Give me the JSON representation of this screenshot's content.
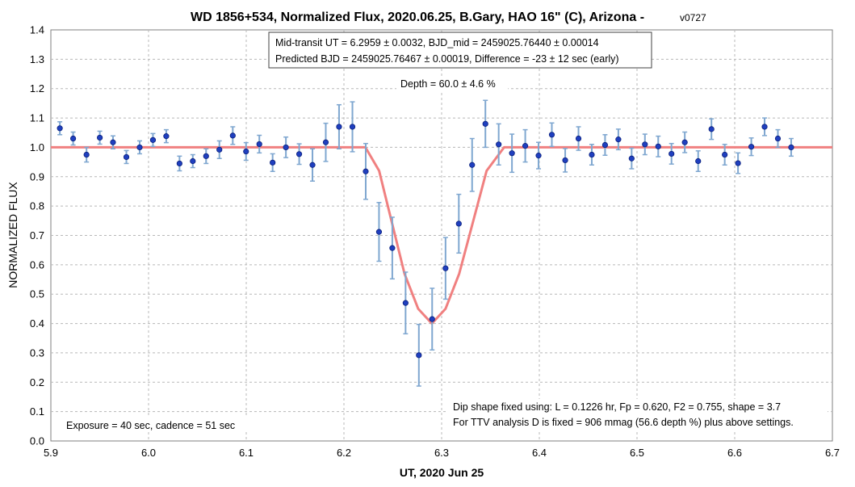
{
  "chart_data": {
    "type": "scatter",
    "title": "WD 1856+534, Normalized Flux, 2020.06.25, B.Gary, HAO 16\" (C), Arizona -",
    "title_version": "v0727",
    "xlabel": "UT, 2020 Jun 25",
    "ylabel": "NORMALIZED FLUX",
    "xlim": [
      5.9,
      6.7
    ],
    "ylim": [
      0.0,
      1.4
    ],
    "x_ticks": [
      "5.9",
      "6.0",
      "6.1",
      "6.2",
      "6.3",
      "6.4",
      "6.5",
      "6.6",
      "6.7"
    ],
    "y_ticks": [
      "0.0",
      "0.1",
      "0.2",
      "0.3",
      "0.4",
      "0.5",
      "0.6",
      "0.7",
      "0.8",
      "0.9",
      "1.0",
      "1.1",
      "1.2",
      "1.3",
      "1.4"
    ],
    "grid": true,
    "series": [
      {
        "type": "scatter-errorbar",
        "color": "#1f3fbf",
        "error_color": "#7fa7d0",
        "points": [
          {
            "x": 5.9092,
            "y": 1.065,
            "err": 0.022
          },
          {
            "x": 5.9228,
            "y": 1.03,
            "err": 0.022
          },
          {
            "x": 5.9365,
            "y": 0.975,
            "err": 0.025
          },
          {
            "x": 5.9501,
            "y": 1.033,
            "err": 0.022
          },
          {
            "x": 5.9636,
            "y": 1.017,
            "err": 0.022
          },
          {
            "x": 5.9773,
            "y": 0.967,
            "err": 0.022
          },
          {
            "x": 5.9909,
            "y": 1.0,
            "err": 0.022
          },
          {
            "x": 6.0045,
            "y": 1.025,
            "err": 0.022
          },
          {
            "x": 6.0181,
            "y": 1.038,
            "err": 0.022
          },
          {
            "x": 6.0317,
            "y": 0.945,
            "err": 0.025
          },
          {
            "x": 6.0453,
            "y": 0.953,
            "err": 0.022
          },
          {
            "x": 6.0589,
            "y": 0.97,
            "err": 0.025
          },
          {
            "x": 6.0725,
            "y": 0.992,
            "err": 0.03
          },
          {
            "x": 6.0862,
            "y": 1.04,
            "err": 0.03
          },
          {
            "x": 6.0998,
            "y": 0.986,
            "err": 0.03
          },
          {
            "x": 6.1134,
            "y": 1.011,
            "err": 0.03
          },
          {
            "x": 6.127,
            "y": 0.948,
            "err": 0.03
          },
          {
            "x": 6.1406,
            "y": 1.0,
            "err": 0.035
          },
          {
            "x": 6.1542,
            "y": 0.977,
            "err": 0.035
          },
          {
            "x": 6.1678,
            "y": 0.94,
            "err": 0.055
          },
          {
            "x": 6.1814,
            "y": 1.017,
            "err": 0.065
          },
          {
            "x": 6.195,
            "y": 1.07,
            "err": 0.075
          },
          {
            "x": 6.2087,
            "y": 1.07,
            "err": 0.085
          },
          {
            "x": 6.2223,
            "y": 0.918,
            "err": 0.095
          },
          {
            "x": 6.2359,
            "y": 0.712,
            "err": 0.1
          },
          {
            "x": 6.2495,
            "y": 0.657,
            "err": 0.105
          },
          {
            "x": 6.2631,
            "y": 0.47,
            "err": 0.105
          },
          {
            "x": 6.2767,
            "y": 0.292,
            "err": 0.105
          },
          {
            "x": 6.2903,
            "y": 0.415,
            "err": 0.105
          },
          {
            "x": 6.304,
            "y": 0.588,
            "err": 0.105
          },
          {
            "x": 6.3176,
            "y": 0.74,
            "err": 0.1
          },
          {
            "x": 6.3312,
            "y": 0.94,
            "err": 0.09
          },
          {
            "x": 6.3448,
            "y": 1.08,
            "err": 0.08
          },
          {
            "x": 6.3584,
            "y": 1.01,
            "err": 0.07
          },
          {
            "x": 6.372,
            "y": 0.98,
            "err": 0.065
          },
          {
            "x": 6.3856,
            "y": 1.005,
            "err": 0.055
          },
          {
            "x": 6.3992,
            "y": 0.972,
            "err": 0.045
          },
          {
            "x": 6.4128,
            "y": 1.043,
            "err": 0.04
          },
          {
            "x": 6.4265,
            "y": 0.956,
            "err": 0.04
          },
          {
            "x": 6.4401,
            "y": 1.03,
            "err": 0.04
          },
          {
            "x": 6.4537,
            "y": 0.975,
            "err": 0.035
          },
          {
            "x": 6.4673,
            "y": 1.008,
            "err": 0.035
          },
          {
            "x": 6.4809,
            "y": 1.027,
            "err": 0.035
          },
          {
            "x": 6.4945,
            "y": 0.962,
            "err": 0.035
          },
          {
            "x": 6.5081,
            "y": 1.01,
            "err": 0.035
          },
          {
            "x": 6.5217,
            "y": 1.003,
            "err": 0.035
          },
          {
            "x": 6.5353,
            "y": 0.978,
            "err": 0.035
          },
          {
            "x": 6.5489,
            "y": 1.017,
            "err": 0.035
          },
          {
            "x": 6.5626,
            "y": 0.953,
            "err": 0.035
          },
          {
            "x": 6.5762,
            "y": 1.062,
            "err": 0.035
          },
          {
            "x": 6.5898,
            "y": 0.975,
            "err": 0.035
          },
          {
            "x": 6.6034,
            "y": 0.946,
            "err": 0.035
          },
          {
            "x": 6.617,
            "y": 1.002,
            "err": 0.03
          },
          {
            "x": 6.6306,
            "y": 1.07,
            "err": 0.03
          },
          {
            "x": 6.6442,
            "y": 1.03,
            "err": 0.03
          },
          {
            "x": 6.6578,
            "y": 1.0,
            "err": 0.03
          }
        ]
      },
      {
        "type": "line",
        "color": "#f08080",
        "points": [
          {
            "x": 5.9,
            "y": 1.0
          },
          {
            "x": 6.222,
            "y": 1.0
          },
          {
            "x": 6.236,
            "y": 0.92
          },
          {
            "x": 6.262,
            "y": 0.57
          },
          {
            "x": 6.276,
            "y": 0.45
          },
          {
            "x": 6.29,
            "y": 0.4
          },
          {
            "x": 6.304,
            "y": 0.45
          },
          {
            "x": 6.318,
            "y": 0.57
          },
          {
            "x": 6.346,
            "y": 0.92
          },
          {
            "x": 6.364,
            "y": 1.0
          },
          {
            "x": 6.7,
            "y": 1.0
          }
        ]
      }
    ],
    "annotations": {
      "box_line1": "Mid-transit UT = 6.2959 ± 0.0032, BJD_mid = 2459025.76440 ± 0.00014",
      "box_line2": "Predicted BJD = 2459025.76467 ± 0.00019, Difference = -23 ± 12 sec (early)",
      "depth": "Depth = 60.0 ± 4.6 %",
      "dip_line1": "Dip shape fixed using:  L = 0.1226 hr, Fp = 0.620, F2 = 0.755, shape = 3.7",
      "dip_line2": "For TTV analysis D is fixed = 906 mmag (56.6 depth %) plus above settings.",
      "exposure": "Exposure = 40 sec, cadence = 51 sec"
    }
  }
}
